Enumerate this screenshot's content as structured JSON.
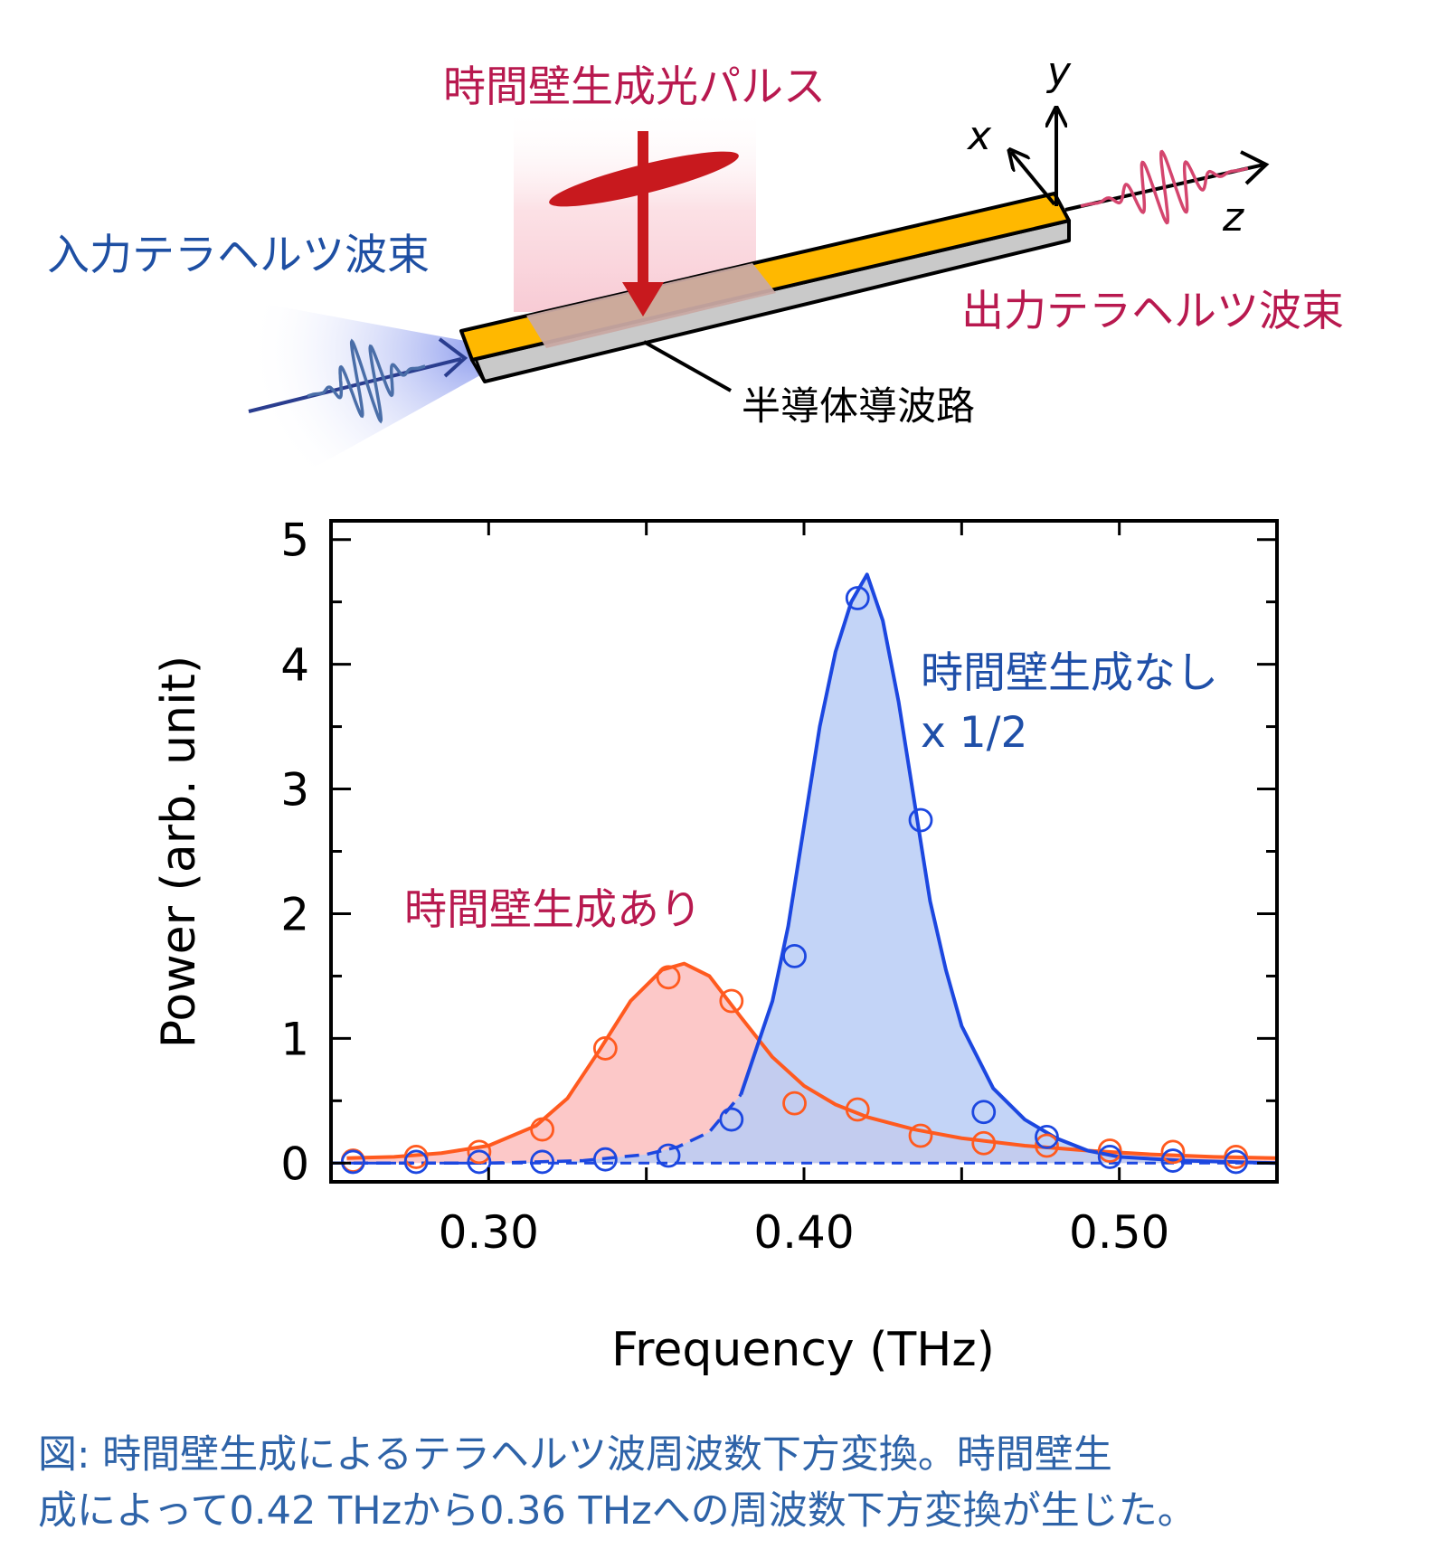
{
  "diagram": {
    "pump_label": "時間壁生成光パルス",
    "input_label": "入力テラヘルツ波束",
    "output_label": "出力テラヘルツ波束",
    "waveguide_label": "半導体導波路",
    "axis_x": "x",
    "axis_y": "y",
    "axis_z": "z"
  },
  "chart_data": {
    "type": "line",
    "xlabel": "Frequency (THz)",
    "ylabel": "Power (arb.  unit)",
    "xlim": [
      0.25,
      0.55
    ],
    "ylim": [
      -0.15,
      5.15
    ],
    "xticks": [
      0.3,
      0.4,
      0.5
    ],
    "xtick_labels": [
      "0.30",
      "0.40",
      "0.50"
    ],
    "yticks": [
      0,
      1,
      2,
      3,
      4,
      5
    ],
    "ytick_labels": [
      "0",
      "1",
      "2",
      "3",
      "4",
      "5"
    ],
    "annotations": {
      "with_wall": "時間壁生成あり",
      "without_wall": "時間壁生成なし",
      "without_wall_scale": "x 1/2"
    },
    "series": [
      {
        "name": "時間壁生成あり",
        "color": "#ff5a1f",
        "fill": "#fcc2c2",
        "points": {
          "x": [
            0.257,
            0.277,
            0.297,
            0.317,
            0.337,
            0.357,
            0.377,
            0.397,
            0.417,
            0.437,
            0.457,
            0.477,
            0.497,
            0.517,
            0.537
          ],
          "y": [
            0.02,
            0.05,
            0.09,
            0.27,
            0.92,
            1.49,
            1.3,
            0.48,
            0.43,
            0.22,
            0.16,
            0.14,
            0.1,
            0.09,
            0.05
          ]
        },
        "fit": {
          "x": [
            0.255,
            0.27,
            0.285,
            0.3,
            0.315,
            0.325,
            0.335,
            0.345,
            0.355,
            0.362,
            0.37,
            0.38,
            0.39,
            0.4,
            0.41,
            0.42,
            0.435,
            0.45,
            0.47,
            0.49,
            0.51,
            0.53,
            0.55
          ],
          "y": [
            0.04,
            0.05,
            0.08,
            0.14,
            0.3,
            0.52,
            0.9,
            1.3,
            1.55,
            1.6,
            1.5,
            1.17,
            0.85,
            0.62,
            0.47,
            0.37,
            0.27,
            0.2,
            0.14,
            0.1,
            0.07,
            0.05,
            0.04
          ]
        }
      },
      {
        "name": "時間壁生成なし",
        "color": "#1c47e0",
        "fill": "#b9ccf6",
        "points": {
          "x": [
            0.257,
            0.277,
            0.297,
            0.317,
            0.337,
            0.357,
            0.377,
            0.397,
            0.417,
            0.437,
            0.457,
            0.477,
            0.497,
            0.517,
            0.537
          ],
          "y": [
            0.01,
            0.01,
            0.01,
            0.01,
            0.03,
            0.06,
            0.35,
            1.66,
            4.53,
            2.75,
            0.41,
            0.21,
            0.05,
            0.02,
            0.01
          ]
        },
        "fit": {
          "x": [
            0.25,
            0.3,
            0.33,
            0.35,
            0.36,
            0.37,
            0.38,
            0.39,
            0.395,
            0.4,
            0.405,
            0.41,
            0.415,
            0.42,
            0.425,
            0.43,
            0.435,
            0.44,
            0.445,
            0.45,
            0.46,
            0.47,
            0.48,
            0.49,
            0.5,
            0.52,
            0.55
          ],
          "y": [
            0.0,
            0.0,
            0.02,
            0.07,
            0.13,
            0.25,
            0.55,
            1.3,
            1.9,
            2.7,
            3.5,
            4.1,
            4.5,
            4.72,
            4.35,
            3.7,
            2.9,
            2.1,
            1.55,
            1.1,
            0.6,
            0.35,
            0.2,
            0.1,
            0.05,
            0.02,
            0.0
          ],
          "dashed_below_x": 0.383
        }
      }
    ]
  },
  "caption": {
    "line1": "図: 時間壁生成によるテラヘルツ波周波数下方変換。時間壁生",
    "line2": "成によって0.42 THzから0.36 THzへの周波数下方変換が生じた。"
  }
}
